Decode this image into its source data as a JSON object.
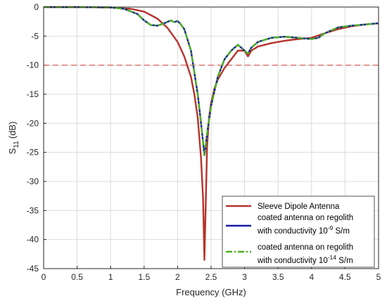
{
  "chart_data": {
    "type": "line",
    "xlabel": "Frequency (GHz)",
    "ylabel_main": "S",
    "ylabel_sub": "11",
    "ylabel_unit": "(dB)",
    "xlim": [
      0,
      5
    ],
    "ylim": [
      -45,
      0
    ],
    "xticks": [
      0,
      0.5,
      1,
      1.5,
      2,
      2.5,
      3,
      3.5,
      4,
      4.5,
      5
    ],
    "yticks": [
      0,
      -5,
      -10,
      -15,
      -20,
      -25,
      -30,
      -35,
      -40,
      -45
    ],
    "grid": true,
    "legend_position": "bottom-right",
    "reference_line": {
      "y": -10,
      "color": "#d9534f",
      "style": "dashed"
    },
    "series": [
      {
        "legend": "Sleeve Dipole Antenna",
        "color": "#b5332a",
        "style": "solid",
        "x": [
          0,
          0.5,
          1.0,
          1.3,
          1.5,
          1.7,
          1.85,
          2.0,
          2.1,
          2.2,
          2.25,
          2.3,
          2.35,
          2.38,
          2.4,
          2.42,
          2.44,
          2.47,
          2.5,
          2.55,
          2.6,
          2.7,
          2.8,
          2.9,
          3.0,
          3.05,
          3.1,
          3.2,
          3.4,
          3.6,
          3.8,
          4.0,
          4.2,
          4.4,
          4.6,
          4.8,
          5.0
        ],
        "y": [
          0,
          0,
          -0.1,
          -0.3,
          -0.8,
          -2.0,
          -3.6,
          -6.0,
          -8.5,
          -12,
          -15,
          -19,
          -26,
          -33,
          -43.5,
          -34,
          -24,
          -19,
          -16.5,
          -14,
          -12.5,
          -10.5,
          -9.0,
          -7.5,
          -7.5,
          -8.5,
          -7.5,
          -6.8,
          -6.2,
          -5.8,
          -5.5,
          -5.3,
          -4.5,
          -3.8,
          -3.3,
          -3.0,
          -2.8
        ]
      },
      {
        "legend_line1": "coated antenna  on regolith",
        "legend_line2_prefix": "with conductivity 10",
        "legend_exp": "-9",
        "legend_suffix": " S/m",
        "color": "#1a1aa6",
        "style": "solid",
        "x": [
          0,
          0.5,
          1.0,
          1.2,
          1.4,
          1.5,
          1.6,
          1.7,
          1.8,
          1.9,
          1.95,
          2.0,
          2.05,
          2.1,
          2.2,
          2.3,
          2.35,
          2.4,
          2.45,
          2.5,
          2.6,
          2.7,
          2.8,
          2.9,
          3.0,
          3.05,
          3.1,
          3.2,
          3.4,
          3.6,
          3.8,
          4.0,
          4.1,
          4.2,
          4.4,
          4.6,
          4.8,
          5.0
        ],
        "y": [
          -0.02,
          -0.02,
          -0.05,
          -0.3,
          -1.2,
          -2.3,
          -3.1,
          -3.2,
          -2.8,
          -2.3,
          -2.6,
          -2.4,
          -3.0,
          -3.8,
          -7.5,
          -15,
          -20,
          -25.5,
          -21,
          -17,
          -12,
          -9.0,
          -7.5,
          -6.5,
          -7.5,
          -8.0,
          -7.0,
          -6.0,
          -5.3,
          -5.1,
          -5.3,
          -5.5,
          -5.3,
          -4.5,
          -3.5,
          -3.2,
          -3.0,
          -2.8
        ]
      },
      {
        "legend_line1": "coated antenna  on regolith",
        "legend_line2_prefix": "with conductivity 10",
        "legend_exp": "-14",
        "legend_suffix": " S/m",
        "color": "#4caf23",
        "style": "dashdot",
        "x": [
          0,
          0.5,
          1.0,
          1.2,
          1.4,
          1.5,
          1.6,
          1.7,
          1.8,
          1.9,
          1.95,
          2.0,
          2.05,
          2.1,
          2.2,
          2.3,
          2.35,
          2.4,
          2.45,
          2.5,
          2.6,
          2.7,
          2.8,
          2.9,
          3.0,
          3.05,
          3.1,
          3.2,
          3.4,
          3.6,
          3.8,
          4.0,
          4.1,
          4.2,
          4.4,
          4.6,
          4.8,
          5.0
        ],
        "y": [
          -0.02,
          -0.02,
          -0.05,
          -0.3,
          -1.2,
          -2.3,
          -3.1,
          -3.2,
          -2.8,
          -2.3,
          -2.6,
          -2.4,
          -3.0,
          -3.8,
          -7.5,
          -15,
          -20,
          -25.5,
          -21,
          -17,
          -12,
          -9.0,
          -7.5,
          -6.5,
          -7.5,
          -8.0,
          -7.0,
          -6.0,
          -5.3,
          -5.1,
          -5.3,
          -5.5,
          -5.3,
          -4.5,
          -3.5,
          -3.2,
          -3.0,
          -2.8
        ]
      }
    ]
  }
}
